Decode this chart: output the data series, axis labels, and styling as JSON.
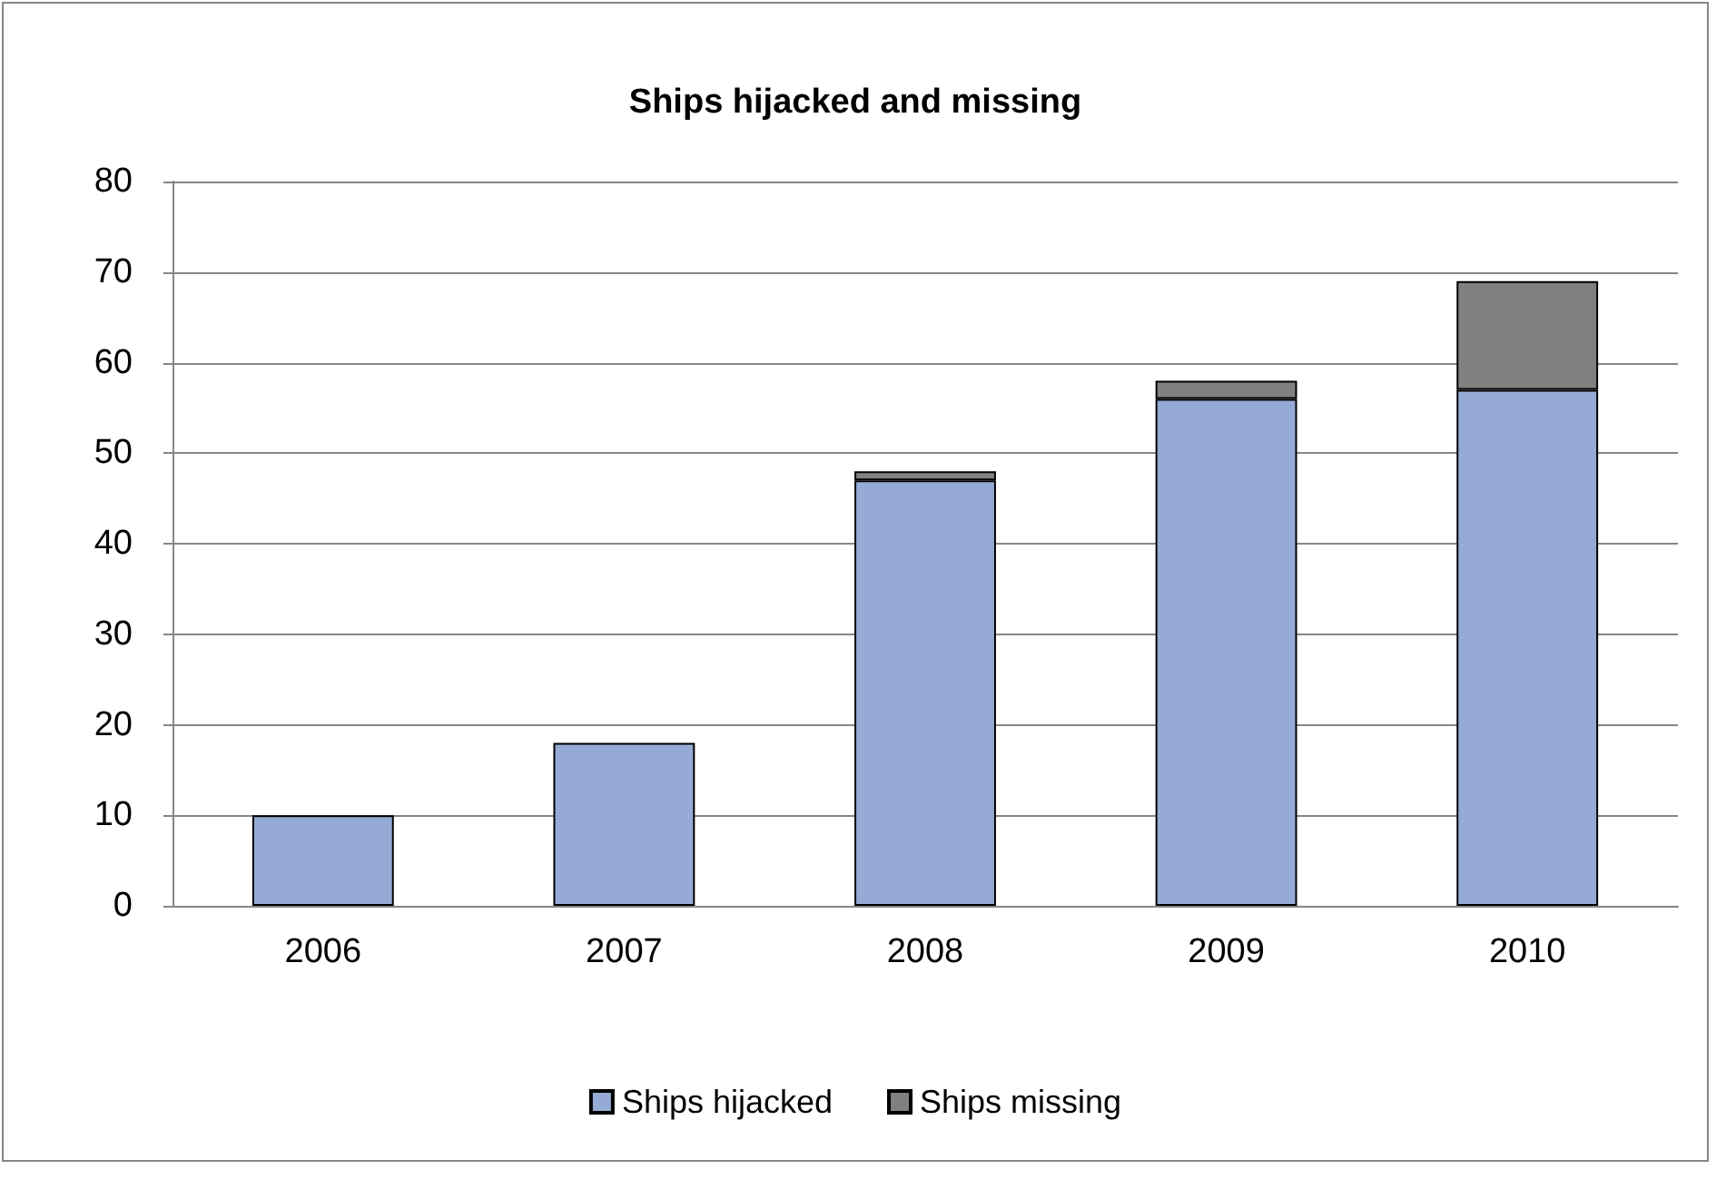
{
  "chart_data": {
    "type": "bar",
    "title": "Ships hijacked and missing",
    "categories": [
      "2006",
      "2007",
      "2008",
      "2009",
      "2010"
    ],
    "series": [
      {
        "name": "Ships hijacked",
        "color": "#95abd5",
        "values": [
          10,
          18,
          47,
          56,
          57
        ]
      },
      {
        "name": "Ships missing",
        "color": "#808080",
        "values": [
          null,
          null,
          1,
          2,
          12
        ]
      }
    ],
    "stacked": true,
    "ylim": [
      0,
      80
    ],
    "yticks": [
      0,
      10,
      20,
      30,
      40,
      50,
      60,
      70,
      80
    ],
    "grid": "y",
    "legend": "bottom"
  }
}
